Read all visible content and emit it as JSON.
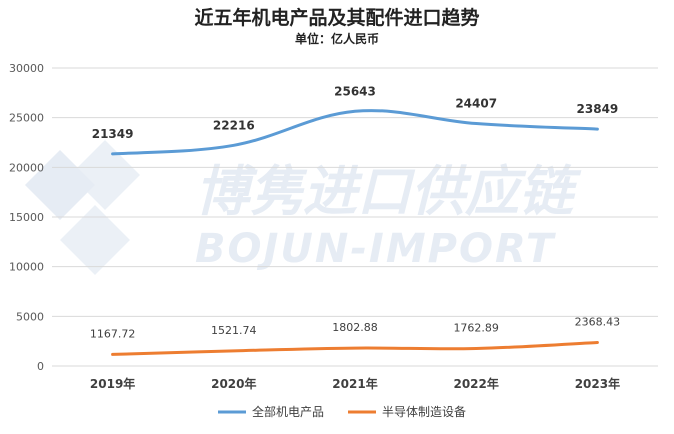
{
  "watermark": {
    "line1": "博隽进口供应链",
    "line2": "BOJUN-IMPORT"
  },
  "chart_data": {
    "type": "line",
    "title": "近五年机电产品及其配件进口趋势",
    "subtitle": "单位：亿人民币",
    "categories": [
      "2019年",
      "2020年",
      "2021年",
      "2022年",
      "2023年"
    ],
    "ylim": [
      0,
      30000
    ],
    "yticks": [
      "0",
      "5000",
      "10000",
      "15000",
      "20000",
      "25000",
      "30000"
    ],
    "grid": true,
    "legend_position": "bottom",
    "series": [
      {
        "name": "全部机电产品",
        "color": "#5b9bd5",
        "values": [
          21349,
          22216,
          25643,
          24407,
          23849
        ],
        "labels": [
          "21349",
          "22216",
          "25643",
          "24407",
          "23849"
        ]
      },
      {
        "name": "半导体制造设备",
        "color": "#ed7d31",
        "values": [
          1167.72,
          1521.74,
          1802.88,
          1762.89,
          2368.43
        ],
        "labels": [
          "1167.72",
          "1521.74",
          "1802.88",
          "1762.89",
          "2368.43"
        ]
      }
    ]
  }
}
